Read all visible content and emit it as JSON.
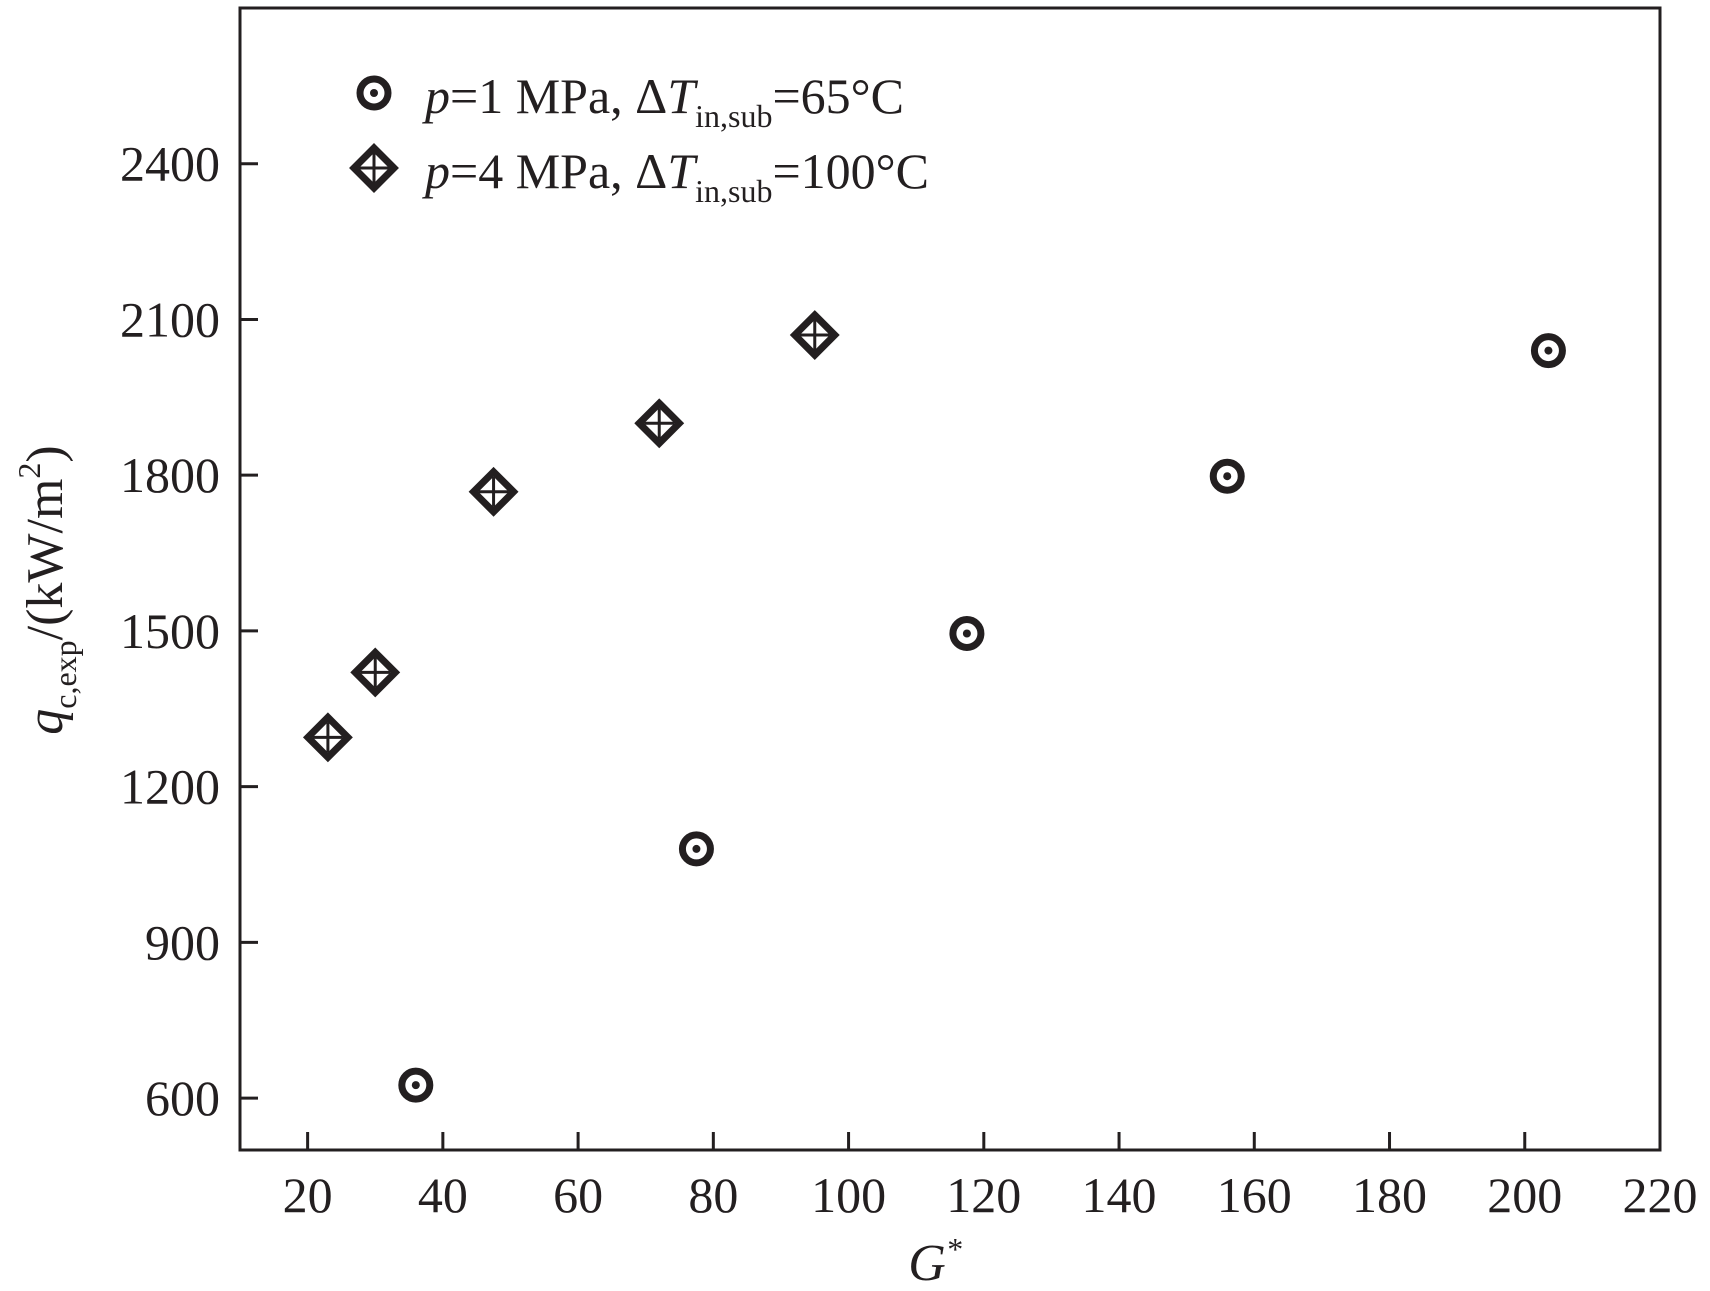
{
  "chart_data": {
    "type": "scatter",
    "xlabel": {
      "base": "G",
      "sup": "*"
    },
    "ylabel": {
      "var": "q",
      "sub": "c,exp",
      "unit": "/(kW/m",
      "unit_sup": "2",
      "unit_close": ")"
    },
    "xlim": [
      10,
      220
    ],
    "ylim": [
      500,
      2700
    ],
    "x_ticks": [
      20,
      40,
      60,
      80,
      100,
      120,
      140,
      160,
      180,
      200,
      220
    ],
    "y_ticks": [
      600,
      900,
      1200,
      1500,
      1800,
      2100,
      2400
    ],
    "grid": false,
    "legend_position": "top-left",
    "series": [
      {
        "marker": "circle-dot",
        "color": "#231f20",
        "legend": {
          "p": "p",
          "eq1": "=1 MPa, ΔT",
          "sub": "in,sub",
          "eq2": "=65°C"
        },
        "points": [
          {
            "x": 36,
            "y": 625
          },
          {
            "x": 77.5,
            "y": 1080
          },
          {
            "x": 117.5,
            "y": 1495
          },
          {
            "x": 156,
            "y": 1798
          },
          {
            "x": 203.5,
            "y": 2040
          }
        ]
      },
      {
        "marker": "diamond-cross",
        "color": "#231f20",
        "legend": {
          "p": "p",
          "eq1": "=4 MPa, ΔT",
          "sub": "in,sub",
          "eq2": "=100°C"
        },
        "points": [
          {
            "x": 23,
            "y": 1295
          },
          {
            "x": 30,
            "y": 1420
          },
          {
            "x": 47.5,
            "y": 1768
          },
          {
            "x": 72,
            "y": 1900
          },
          {
            "x": 95,
            "y": 2070
          }
        ]
      }
    ]
  }
}
